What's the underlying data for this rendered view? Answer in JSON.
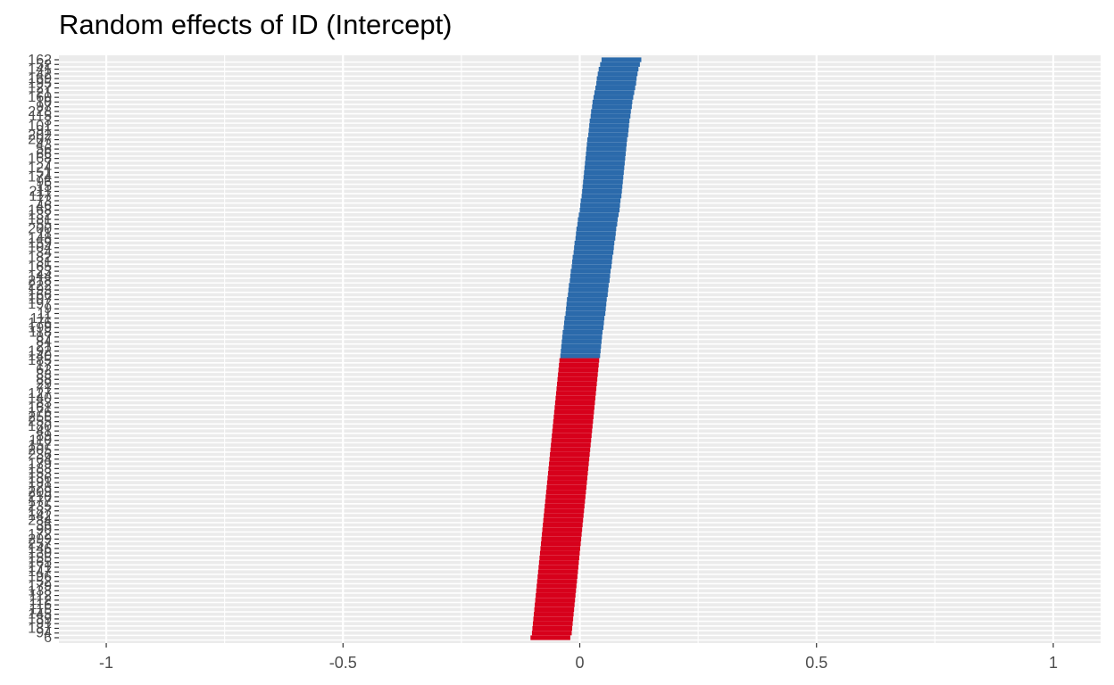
{
  "chart_data": {
    "type": "scatter",
    "title": "Random effects of ID (Intercept)",
    "xlabel": "",
    "ylabel": "",
    "xlim": [
      -1.1,
      1.1
    ],
    "x_ticks": [
      -1,
      -0.5,
      0,
      0.5,
      1
    ],
    "x_tick_labels": [
      "-1",
      "-0.5",
      "0",
      "0.5",
      "1"
    ],
    "grid": true,
    "colors": {
      "positive": "#2b6aab",
      "negative": "#d7001b",
      "panel": "#ebebeb",
      "gridline": "#ffffff"
    },
    "ci_halfwidth": 0.042,
    "ids": [
      "162",
      "52",
      "141",
      "42",
      "169",
      "195",
      "127",
      "21",
      "160",
      "10",
      "97",
      "228",
      "115",
      "3",
      "101",
      "91",
      "202",
      "207",
      "43",
      "56",
      "66",
      "168",
      "7",
      "124",
      "51",
      "174",
      "96",
      "15",
      "211",
      "117",
      "73",
      "46",
      "168",
      "132",
      "181",
      "55",
      "200",
      "11",
      "148",
      "159",
      "104",
      "34",
      "182",
      "31",
      "165",
      "23",
      "144",
      "218",
      "222",
      "193",
      "166",
      "107",
      "197",
      "9",
      "11",
      "111",
      "176",
      "199",
      "118",
      "87",
      "84",
      "21",
      "192",
      "140",
      "185",
      "17",
      "62",
      "83",
      "88",
      "29",
      "71",
      "127",
      "140",
      "83",
      "161",
      "176",
      "256",
      "255",
      "180",
      "41",
      "89",
      "110",
      "157",
      "205",
      "236",
      "64",
      "179",
      "188",
      "153",
      "186",
      "191",
      "128",
      "209",
      "210",
      "177",
      "235",
      "187",
      "142",
      "284",
      "36",
      "90",
      "172",
      "299",
      "257",
      "146",
      "130",
      "155",
      "165",
      "171",
      "147",
      "196",
      "52",
      "179",
      "138",
      "112",
      "112",
      "116",
      "115",
      "145",
      "189",
      "91",
      "187",
      "94",
      "6"
    ],
    "estimates": [
      0.088,
      0.085,
      0.082,
      0.08,
      0.078,
      0.077,
      0.075,
      0.073,
      0.071,
      0.069,
      0.068,
      0.066,
      0.065,
      0.063,
      0.062,
      0.061,
      0.06,
      0.058,
      0.057,
      0.056,
      0.055,
      0.054,
      0.053,
      0.052,
      0.051,
      0.05,
      0.049,
      0.048,
      0.047,
      0.046,
      0.044,
      0.043,
      0.042,
      0.04,
      0.038,
      0.037,
      0.035,
      0.034,
      0.033,
      0.031,
      0.03,
      0.029,
      0.027,
      0.026,
      0.025,
      0.023,
      0.022,
      0.021,
      0.019,
      0.018,
      0.017,
      0.015,
      0.014,
      0.013,
      0.012,
      0.01,
      0.009,
      0.008,
      0.006,
      0.005,
      0.004,
      0.003,
      0.002,
      0.001,
      -0.001,
      -0.002,
      -0.003,
      -0.004,
      -0.005,
      -0.006,
      -0.007,
      -0.008,
      -0.009,
      -0.01,
      -0.011,
      -0.012,
      -0.013,
      -0.014,
      -0.015,
      -0.016,
      -0.017,
      -0.018,
      -0.019,
      -0.02,
      -0.021,
      -0.022,
      -0.023,
      -0.024,
      -0.025,
      -0.026,
      -0.027,
      -0.028,
      -0.029,
      -0.03,
      -0.031,
      -0.032,
      -0.033,
      -0.034,
      -0.035,
      -0.036,
      -0.037,
      -0.038,
      -0.039,
      -0.04,
      -0.041,
      -0.042,
      -0.043,
      -0.044,
      -0.045,
      -0.046,
      -0.047,
      -0.048,
      -0.049,
      -0.05,
      -0.051,
      -0.052,
      -0.053,
      -0.054,
      -0.055,
      -0.056,
      -0.057,
      -0.058,
      -0.059,
      -0.062
    ]
  }
}
